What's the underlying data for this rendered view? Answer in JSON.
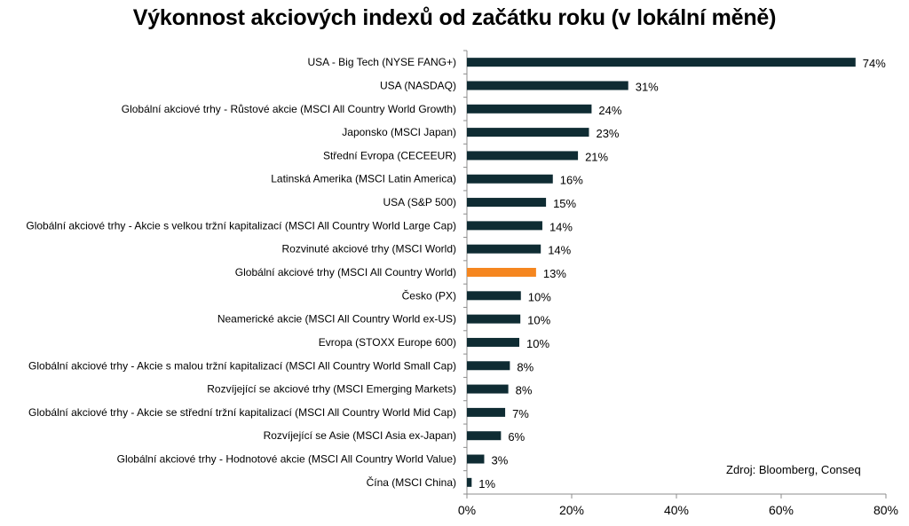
{
  "chart_data": {
    "type": "bar",
    "orientation": "horizontal",
    "title": "Výkonnost akciových indexů od začátku roku (v lokální měně)",
    "categories": [
      "USA - Big Tech (NYSE FANG+)",
      "USA (NASDAQ)",
      "Globální akciové trhy - Růstové akcie (MSCI All Country World Growth)",
      "Japonsko (MSCI Japan)",
      "Střední Evropa (CECEEUR)",
      "Latinská Amerika (MSCI Latin America)",
      "USA (S&P 500)",
      "Globální akciové trhy - Akcie s velkou tržní kapitalizací (MSCI All Country World Large Cap)",
      "Rozvinuté akciové trhy (MSCI World)",
      "Globální akciové trhy (MSCI All Country World)",
      "Česko (PX)",
      "Neamerické akcie (MSCI All Country World ex-US)",
      "Evropa (STOXX Europe 600)",
      "Globální akciové trhy - Akcie s malou tržní kapitalizací (MSCI All Country World Small Cap)",
      "Rozvíjející se akciové trhy (MSCI Emerging Markets)",
      "Globální akciové trhy - Akcie se střední tržní kapitalizací (MSCI All Country World Mid Cap)",
      "Rozvíjející se Asie (MSCI Asia ex-Japan)",
      "Globální akciové trhy - Hodnotové akcie (MSCI All Country World Value)",
      "Čína (MSCI China)"
    ],
    "values": [
      74.2,
      30.8,
      23.8,
      23.3,
      21.2,
      16.4,
      15.1,
      14.4,
      14.1,
      13.2,
      10.3,
      10.2,
      10.0,
      8.2,
      7.9,
      7.3,
      6.5,
      3.3,
      0.9
    ],
    "value_labels": [
      "74%",
      "31%",
      "24%",
      "23%",
      "21%",
      "16%",
      "15%",
      "14%",
      "14%",
      "13%",
      "10%",
      "10%",
      "10%",
      "8%",
      "8%",
      "7%",
      "6%",
      "3%",
      "1%"
    ],
    "highlight_index": 9,
    "xlim": [
      0,
      80
    ],
    "xticks": [
      0,
      20,
      40,
      60,
      80
    ],
    "xtick_labels": [
      "0%",
      "20%",
      "40%",
      "60%",
      "80%"
    ],
    "xlabel": "",
    "ylabel": "",
    "grid": false,
    "colors": {
      "bar": "#0f2c33",
      "highlight": "#f5861f",
      "axis": "#8c8c8c"
    }
  },
  "source_note": "Zdroj: Bloomberg, Conseq"
}
